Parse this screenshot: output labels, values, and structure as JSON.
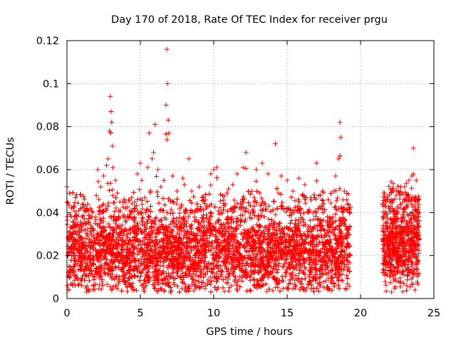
{
  "chart_data": {
    "type": "scatter",
    "title": "Day 170 of 2018, Rate Of TEC Index for receiver prgu",
    "xlabel": "GPS time / hours",
    "ylabel": "ROTI / TECUs",
    "xlim": [
      0,
      25
    ],
    "ylim": [
      0,
      0.12
    ],
    "xticks": [
      0,
      5,
      10,
      15,
      20,
      25
    ],
    "xtick_labels": [
      "0",
      "5",
      "10",
      "15",
      "20",
      "25"
    ],
    "yticks": [
      0,
      0.02,
      0.04,
      0.06,
      0.08,
      0.1,
      0.12
    ],
    "ytick_labels": [
      "0",
      "0.02",
      "0.04",
      "0.06",
      "0.08",
      "0.1",
      "0.12"
    ],
    "grid": true,
    "marker": "+",
    "marker_color": "#ff0000",
    "data_segments": [
      {
        "x_start": 0.0,
        "x_end": 19.3,
        "typical_range": [
          0.005,
          0.04
        ]
      },
      {
        "x_start": 21.5,
        "x_end": 24.0,
        "typical_range": [
          0.007,
          0.045
        ]
      }
    ],
    "series": [
      {
        "name": "ROTI prgu",
        "points": [
          [
            0.0,
            0.052
          ],
          [
            0.2,
            0.031
          ],
          [
            0.5,
            0.038
          ],
          [
            0.8,
            0.041
          ],
          [
            1.2,
            0.037
          ],
          [
            1.6,
            0.042
          ],
          [
            2.0,
            0.048
          ],
          [
            2.1,
            0.06
          ],
          [
            2.3,
            0.052
          ],
          [
            2.5,
            0.057
          ],
          [
            2.7,
            0.062
          ],
          [
            2.8,
            0.065
          ],
          [
            2.9,
            0.078
          ],
          [
            2.95,
            0.094
          ],
          [
            3.0,
            0.087
          ],
          [
            3.05,
            0.082
          ],
          [
            3.1,
            0.071
          ],
          [
            3.3,
            0.055
          ],
          [
            3.6,
            0.045
          ],
          [
            4.0,
            0.042
          ],
          [
            4.4,
            0.047
          ],
          [
            4.8,
            0.058
          ],
          [
            5.0,
            0.063
          ],
          [
            5.1,
            0.055
          ],
          [
            5.3,
            0.047
          ],
          [
            5.5,
            0.061
          ],
          [
            5.6,
            0.077
          ],
          [
            5.8,
            0.065
          ],
          [
            5.9,
            0.068
          ],
          [
            6.0,
            0.081
          ],
          [
            6.2,
            0.06
          ],
          [
            6.4,
            0.052
          ],
          [
            6.6,
            0.055
          ],
          [
            6.75,
            0.09
          ],
          [
            6.8,
            0.116
          ],
          [
            6.85,
            0.1
          ],
          [
            6.9,
            0.083
          ],
          [
            6.95,
            0.077
          ],
          [
            7.2,
            0.057
          ],
          [
            7.5,
            0.05
          ],
          [
            7.9,
            0.056
          ],
          [
            8.0,
            0.053
          ],
          [
            8.3,
            0.065
          ],
          [
            8.5,
            0.05
          ],
          [
            9.0,
            0.052
          ],
          [
            9.3,
            0.047
          ],
          [
            9.8,
            0.058
          ],
          [
            10.0,
            0.06
          ],
          [
            10.2,
            0.061
          ],
          [
            10.6,
            0.048
          ],
          [
            11.0,
            0.051
          ],
          [
            11.3,
            0.053
          ],
          [
            11.6,
            0.058
          ],
          [
            12.0,
            0.061
          ],
          [
            12.2,
            0.068
          ],
          [
            12.6,
            0.05
          ],
          [
            12.9,
            0.06
          ],
          [
            13.3,
            0.063
          ],
          [
            13.7,
            0.058
          ],
          [
            14.2,
            0.072
          ],
          [
            14.6,
            0.057
          ],
          [
            15.0,
            0.055
          ],
          [
            15.4,
            0.05
          ],
          [
            15.8,
            0.056
          ],
          [
            16.2,
            0.053
          ],
          [
            16.6,
            0.047
          ],
          [
            17.0,
            0.063
          ],
          [
            17.4,
            0.05
          ],
          [
            17.8,
            0.046
          ],
          [
            18.3,
            0.057
          ],
          [
            18.5,
            0.065
          ],
          [
            18.6,
            0.082
          ],
          [
            18.65,
            0.075
          ],
          [
            18.9,
            0.05
          ],
          [
            19.1,
            0.044
          ],
          [
            21.5,
            0.044
          ],
          [
            21.8,
            0.035
          ],
          [
            22.1,
            0.046
          ],
          [
            22.4,
            0.04
          ],
          [
            22.7,
            0.05
          ],
          [
            23.0,
            0.052
          ],
          [
            23.3,
            0.055
          ],
          [
            23.5,
            0.057
          ],
          [
            23.6,
            0.07
          ],
          [
            23.8,
            0.055
          ],
          [
            24.0,
            0.04
          ]
        ]
      }
    ]
  }
}
